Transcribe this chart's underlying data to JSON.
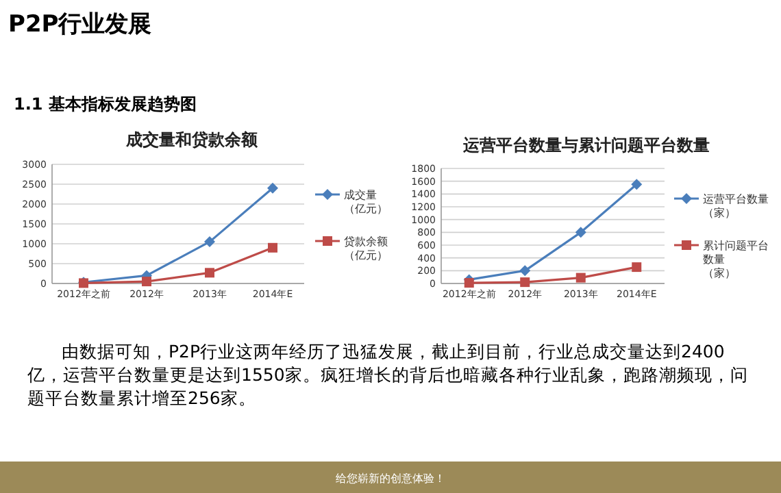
{
  "chart_data": [
    {
      "type": "line",
      "title": "成交量和贷款余额",
      "categories": [
        "2012年之前",
        "2012年",
        "2013年",
        "2014年E"
      ],
      "ylim": [
        0,
        3000
      ],
      "yticks": [
        0,
        500,
        1000,
        1500,
        2000,
        2500,
        3000
      ],
      "grid": "y",
      "legend": "right",
      "series": [
        {
          "name": "成交量（亿元）",
          "color": "#4a7ebb",
          "marker": "diamond",
          "values": [
            30,
            200,
            1050,
            2400
          ]
        },
        {
          "name": "贷款余额（亿元）",
          "color": "#be4b48",
          "marker": "square",
          "values": [
            10,
            50,
            270,
            900
          ]
        }
      ],
      "annotations": [
        "P2P行业发展",
        "1.1 基本指标发展趋势图",
        "由数据可知，P2P行业这两年经历了迅猛发展，截止到目前，行业总成交量达到2400亿，运营平台数量更是达到1550家。疯狂增长的背后也暗藏各种行业乱象，跑路潮频现，问题平台数量累计增至256家。",
        "给您崭新的创意体验！"
      ]
    },
    {
      "type": "line",
      "title": "运营平台数量与累计问题平台数量",
      "categories": [
        "2012年之前",
        "2012年",
        "2013年",
        "2014年E"
      ],
      "ylim": [
        0,
        1800
      ],
      "yticks": [
        0,
        200,
        400,
        600,
        800,
        1000,
        1200,
        1400,
        1600,
        1800
      ],
      "grid": "y",
      "legend": "right",
      "series": [
        {
          "name": "运营平台数量（家）",
          "color": "#4a7ebb",
          "marker": "diamond",
          "values": [
            60,
            200,
            800,
            1550
          ]
        },
        {
          "name": "累计问题平台数量（家）",
          "color": "#be4b48",
          "marker": "square",
          "values": [
            10,
            20,
            90,
            256
          ]
        }
      ]
    }
  ]
}
